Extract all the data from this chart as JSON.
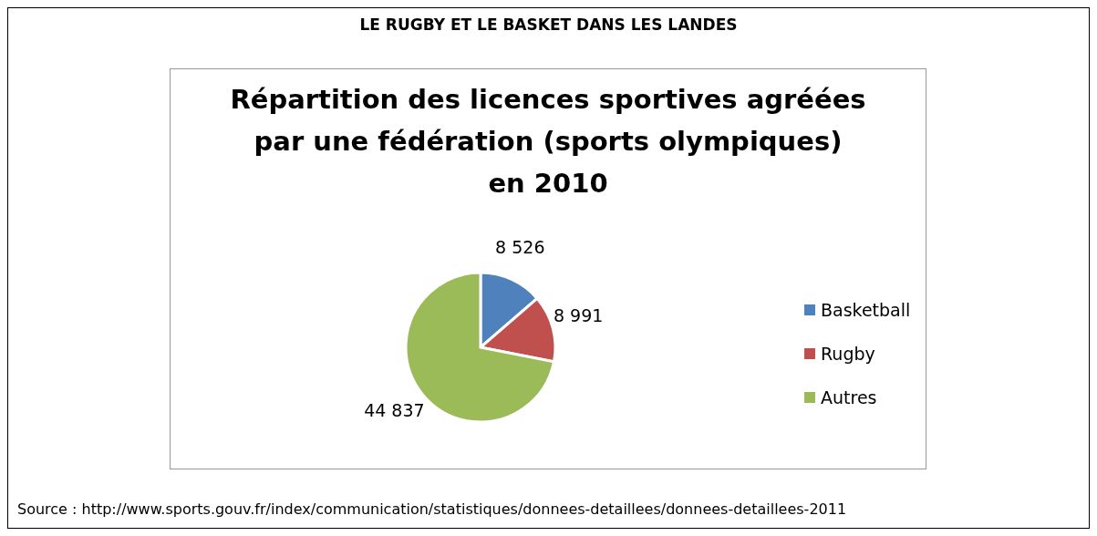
{
  "chart_data": {
    "type": "pie",
    "subtitle": "LE RUGBY ET LE BASKET DANS LES LANDES",
    "title": "Répartition des licences sportives agréées\npar une fédération (sports olympiques)\nen 2010",
    "categories": [
      "Basketball",
      "Rugby",
      "Autres"
    ],
    "values": [
      8526,
      8991,
      44837
    ],
    "value_labels": [
      "8 526",
      "8 991",
      "44 837"
    ],
    "colors": [
      "#4f81bd",
      "#c0504d",
      "#9bbb59"
    ],
    "legend": "right",
    "annotations": [
      "Source : http://www.sports.gouv.fr/index/communication/statistiques/donnees-detaillees/donnees-detaillees-2011"
    ]
  }
}
